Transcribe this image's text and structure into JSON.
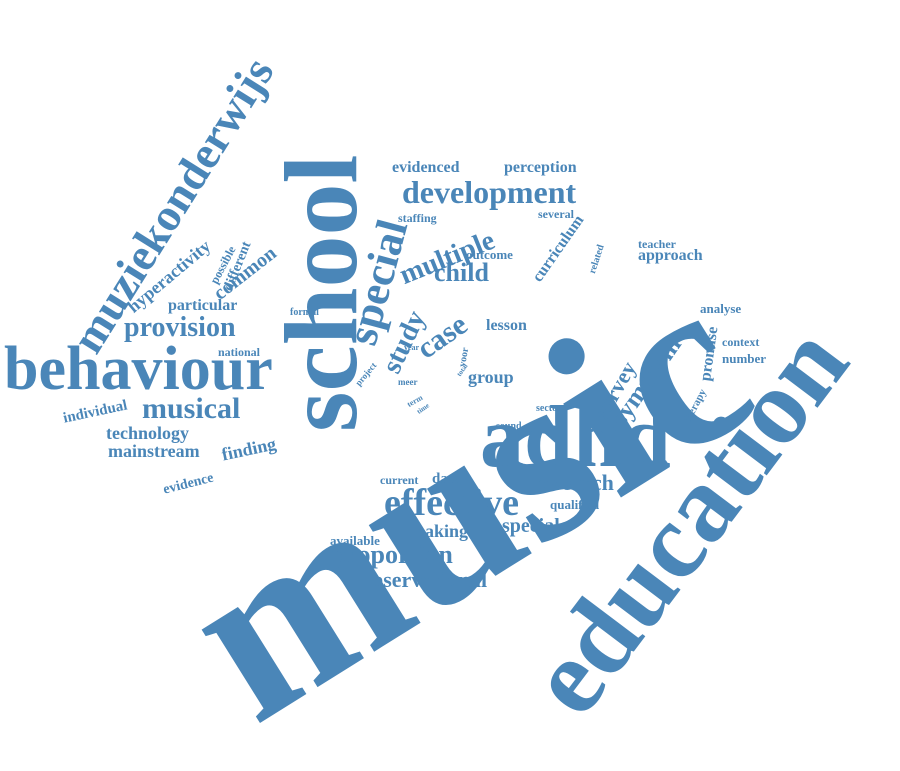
{
  "color": "#4a86b8",
  "words": [
    "music",
    "education",
    "school",
    "adhd",
    "behaviour",
    "muziekonderwijs",
    "special",
    "development",
    "effective",
    "provision",
    "study",
    "case",
    "musical",
    "multiple",
    "child",
    "symptom",
    "survey",
    "proportion",
    "observational",
    "mainstream",
    "technology",
    "research",
    "hyperactivity",
    "common",
    "finding",
    "making",
    "speciale",
    "group",
    "lesson",
    "evidenced",
    "perception",
    "curriculum",
    "approach",
    "promise",
    "individual",
    "national",
    "evidence",
    "particular",
    "different",
    "possible",
    "staffing",
    "outcome",
    "several",
    "teacher",
    "related",
    "analyse",
    "context",
    "number",
    "therapy",
    "data",
    "current",
    "available",
    "qualified",
    "sound",
    "sector",
    "formal",
    "project",
    "year",
    "voor",
    "total",
    "meer",
    "term",
    "time"
  ]
}
